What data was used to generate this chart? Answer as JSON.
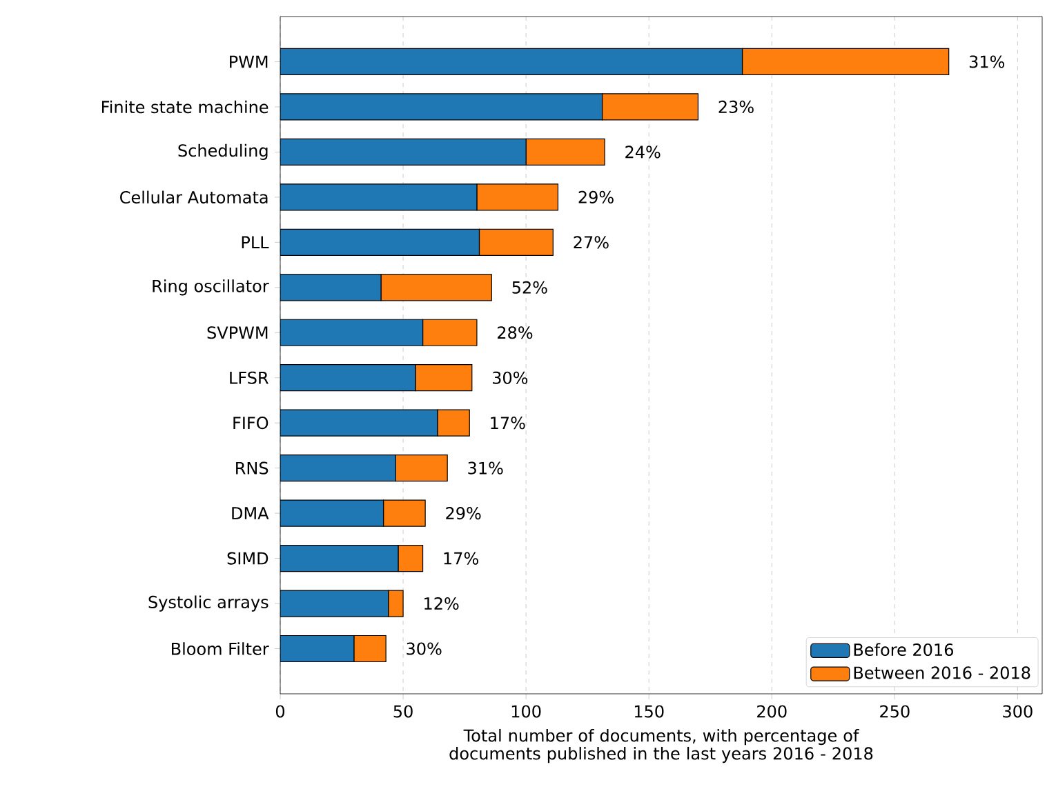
{
  "chart_data": {
    "type": "bar",
    "orientation": "horizontal",
    "stacked": true,
    "xlabel": "Total number of documents, with percentage of documents published in the last years 2016 - 2018",
    "categories": [
      "PWM",
      "Finite state machine",
      "Scheduling",
      "Cellular Automata",
      "PLL",
      "Ring oscillator",
      "SVPWM",
      "LFSR",
      "FIFO",
      "RNS",
      "DMA",
      "SIMD",
      "Systolic arrays",
      "Bloom Filter"
    ],
    "series": [
      {
        "name": "Before 2016",
        "color": "#1f77b4",
        "values": [
          188,
          131,
          100,
          80,
          81,
          41,
          58,
          55,
          64,
          47,
          42,
          48,
          44,
          30
        ]
      },
      {
        "name": "Between 2016 - 2018",
        "color": "#ff7f0e",
        "values": [
          84,
          39,
          32,
          33,
          30,
          45,
          22,
          23,
          13,
          21,
          17,
          10,
          6,
          13
        ]
      }
    ],
    "annotations": [
      "31%",
      "23%",
      "24%",
      "29%",
      "27%",
      "52%",
      "28%",
      "30%",
      "17%",
      "31%",
      "29%",
      "17%",
      "12%",
      "30%"
    ],
    "xlim": [
      0,
      310
    ],
    "xticks": [
      0,
      50,
      100,
      150,
      200,
      250,
      300
    ],
    "grid": "x",
    "legend": "bottom right"
  }
}
